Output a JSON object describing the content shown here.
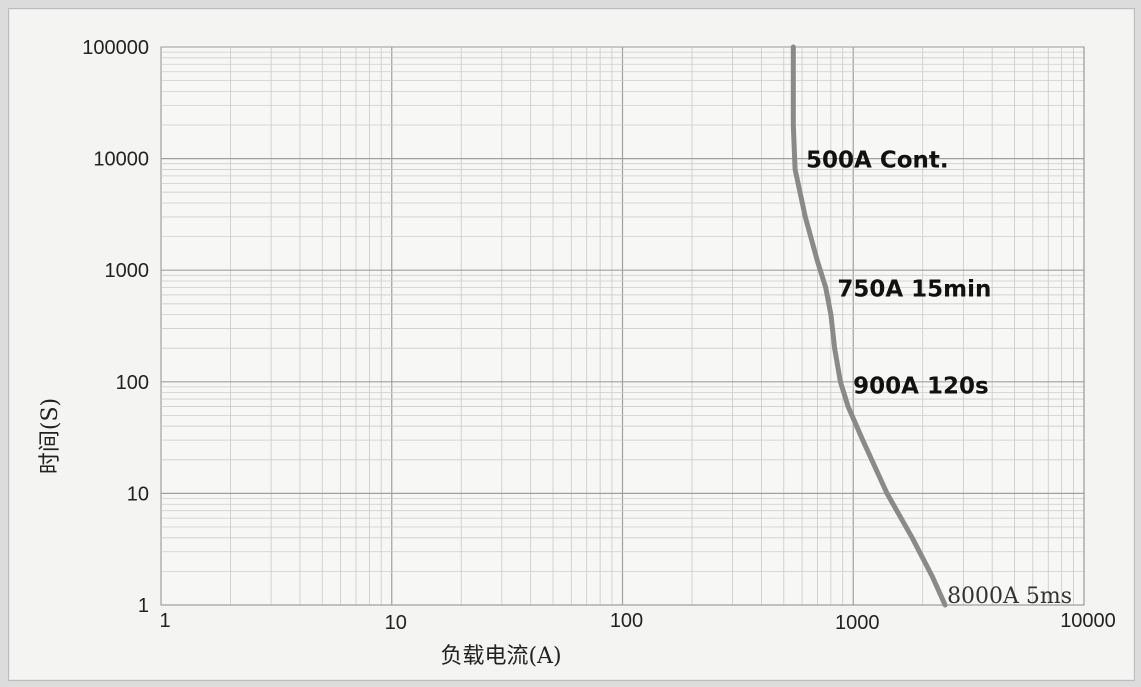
{
  "chart_data": {
    "type": "line",
    "title": "",
    "xlabel": "负载电流(A)",
    "ylabel": "时间(S)",
    "x_scale": "log",
    "y_scale": "log",
    "xlim": [
      1,
      10000
    ],
    "ylim": [
      1,
      100000
    ],
    "x_ticks": [
      "1",
      "10",
      "100",
      "1000",
      "10000"
    ],
    "y_ticks": [
      "1",
      "10",
      "100",
      "1000",
      "10000",
      "100000"
    ],
    "grid": true,
    "series": [
      {
        "color": "#8a8a8a",
        "x": [
          550,
          550,
          560,
          620,
          700,
          760,
          800,
          830,
          880,
          950,
          1100,
          1400,
          1800,
          2200,
          2500
        ],
        "y": [
          100000,
          20000,
          8000,
          3000,
          1200,
          700,
          400,
          200,
          100,
          60,
          30,
          10,
          4,
          1.8,
          1
        ]
      }
    ],
    "annotations": [
      {
        "text": "500A Cont.",
        "x": 600,
        "y": 10000,
        "style": "bold"
      },
      {
        "text": "750A 15min",
        "x": 820,
        "y": 700,
        "style": "bold"
      },
      {
        "text": "900A 120s",
        "x": 960,
        "y": 95,
        "style": "bold"
      },
      {
        "text": "8000A  5ms",
        "x": 2500,
        "y": 1,
        "style": "light"
      }
    ]
  }
}
